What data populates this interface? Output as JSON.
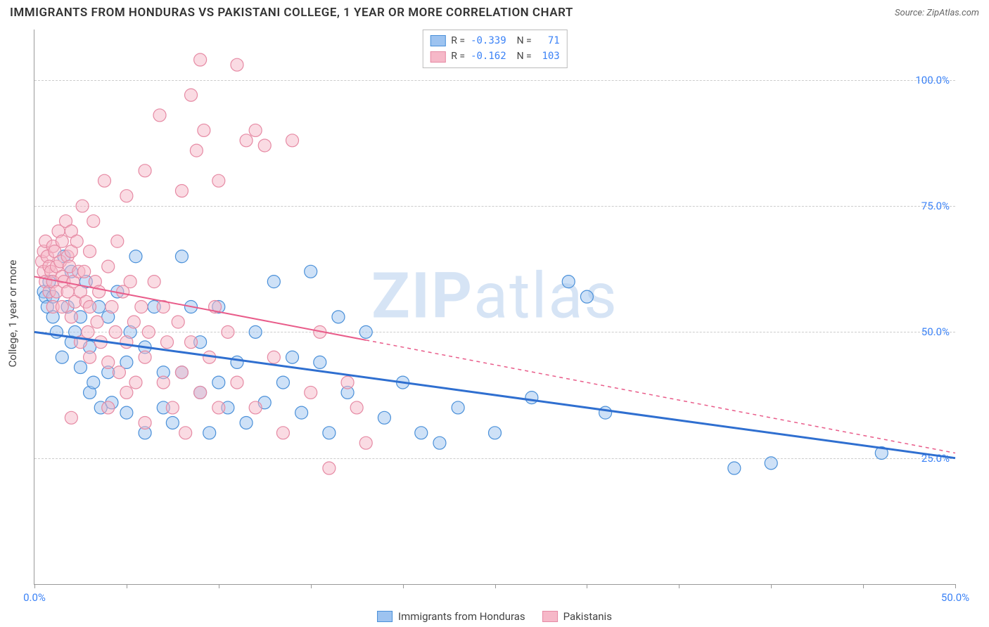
{
  "header": {
    "title": "IMMIGRANTS FROM HONDURAS VS PAKISTANI COLLEGE, 1 YEAR OR MORE CORRELATION CHART",
    "source": "Source: ZipAtlas.com"
  },
  "chart": {
    "type": "scatter",
    "ylabel": "College, 1 year or more",
    "watermark": "ZIPatlas",
    "background_color": "#ffffff",
    "grid_color": "#cccccc",
    "axis_color": "#999999",
    "label_color": "#3b82f6",
    "xlim": [
      0,
      50
    ],
    "ylim": [
      0,
      110
    ],
    "yticks": [
      25,
      50,
      75,
      100
    ],
    "ytick_labels": [
      "25.0%",
      "50.0%",
      "75.0%",
      "100.0%"
    ],
    "xticks": [
      0,
      5,
      10,
      15,
      20,
      25,
      30,
      35,
      40,
      45,
      50
    ],
    "xmin_label": "0.0%",
    "xmax_label": "50.0%",
    "marker_radius": 9,
    "marker_opacity": 0.5,
    "series": [
      {
        "name": "Immigrants from Honduras",
        "fill": "#9dc3f0",
        "stroke": "#4a90d9",
        "line_color": "#2f6fd0",
        "line_width": 3,
        "R": "-0.339",
        "N": "71",
        "trend": {
          "x1": 0,
          "y1": 50,
          "x2": 50,
          "y2": 25,
          "dash_from_x": null
        },
        "points": [
          [
            0.5,
            58
          ],
          [
            0.6,
            57
          ],
          [
            0.7,
            55
          ],
          [
            0.8,
            60
          ],
          [
            1.0,
            57
          ],
          [
            1.0,
            53
          ],
          [
            1.2,
            50
          ],
          [
            1.5,
            45
          ],
          [
            1.6,
            65
          ],
          [
            1.8,
            55
          ],
          [
            2.0,
            48
          ],
          [
            2.0,
            62
          ],
          [
            2.2,
            50
          ],
          [
            2.5,
            43
          ],
          [
            2.5,
            53
          ],
          [
            2.8,
            60
          ],
          [
            3.0,
            38
          ],
          [
            3.0,
            47
          ],
          [
            3.2,
            40
          ],
          [
            3.5,
            55
          ],
          [
            3.6,
            35
          ],
          [
            4.0,
            42
          ],
          [
            4.0,
            53
          ],
          [
            4.2,
            36
          ],
          [
            4.5,
            58
          ],
          [
            5.0,
            44
          ],
          [
            5.0,
            34
          ],
          [
            5.2,
            50
          ],
          [
            5.5,
            65
          ],
          [
            6.0,
            47
          ],
          [
            6.0,
            30
          ],
          [
            6.5,
            55
          ],
          [
            7.0,
            42
          ],
          [
            7.0,
            35
          ],
          [
            7.5,
            32
          ],
          [
            8.0,
            65
          ],
          [
            8.0,
            42
          ],
          [
            8.5,
            55
          ],
          [
            9.0,
            38
          ],
          [
            9.0,
            48
          ],
          [
            9.5,
            30
          ],
          [
            10.0,
            40
          ],
          [
            10.0,
            55
          ],
          [
            10.5,
            35
          ],
          [
            11.0,
            44
          ],
          [
            11.5,
            32
          ],
          [
            12.0,
            50
          ],
          [
            12.5,
            36
          ],
          [
            13.0,
            60
          ],
          [
            13.5,
            40
          ],
          [
            14.0,
            45
          ],
          [
            14.5,
            34
          ],
          [
            15.0,
            62
          ],
          [
            15.5,
            44
          ],
          [
            16.0,
            30
          ],
          [
            16.5,
            53
          ],
          [
            17.0,
            38
          ],
          [
            18.0,
            50
          ],
          [
            19.0,
            33
          ],
          [
            20.0,
            40
          ],
          [
            21.0,
            30
          ],
          [
            22.0,
            28
          ],
          [
            23.0,
            35
          ],
          [
            25.0,
            30
          ],
          [
            27.0,
            37
          ],
          [
            29.0,
            60
          ],
          [
            30.0,
            57
          ],
          [
            31.0,
            34
          ],
          [
            38.0,
            23
          ],
          [
            40.0,
            24
          ],
          [
            46.0,
            26
          ]
        ]
      },
      {
        "name": "Pakistanis",
        "fill": "#f6b8c8",
        "stroke": "#e68aa4",
        "line_color": "#e95c8a",
        "line_width": 2,
        "R": "-0.162",
        "N": "103",
        "trend": {
          "x1": 0,
          "y1": 61,
          "x2": 50,
          "y2": 26,
          "dash_from_x": 18
        },
        "points": [
          [
            0.4,
            64
          ],
          [
            0.5,
            66
          ],
          [
            0.5,
            62
          ],
          [
            0.6,
            68
          ],
          [
            0.6,
            60
          ],
          [
            0.7,
            65
          ],
          [
            0.8,
            63
          ],
          [
            0.8,
            58
          ],
          [
            0.9,
            62
          ],
          [
            1.0,
            67
          ],
          [
            1.0,
            60
          ],
          [
            1.0,
            55
          ],
          [
            1.1,
            66
          ],
          [
            1.2,
            63
          ],
          [
            1.2,
            58
          ],
          [
            1.3,
            70
          ],
          [
            1.4,
            64
          ],
          [
            1.5,
            61
          ],
          [
            1.5,
            68
          ],
          [
            1.5,
            55
          ],
          [
            1.6,
            60
          ],
          [
            1.7,
            72
          ],
          [
            1.8,
            65
          ],
          [
            1.8,
            58
          ],
          [
            1.9,
            63
          ],
          [
            2.0,
            70
          ],
          [
            2.0,
            66
          ],
          [
            2.0,
            53
          ],
          [
            2.1,
            60
          ],
          [
            2.2,
            56
          ],
          [
            2.3,
            68
          ],
          [
            2.4,
            62
          ],
          [
            2.5,
            58
          ],
          [
            2.5,
            48
          ],
          [
            2.6,
            75
          ],
          [
            2.7,
            62
          ],
          [
            2.8,
            56
          ],
          [
            2.9,
            50
          ],
          [
            3.0,
            66
          ],
          [
            3.0,
            55
          ],
          [
            3.0,
            45
          ],
          [
            3.2,
            72
          ],
          [
            3.3,
            60
          ],
          [
            3.4,
            52
          ],
          [
            3.5,
            58
          ],
          [
            3.6,
            48
          ],
          [
            3.8,
            80
          ],
          [
            4.0,
            44
          ],
          [
            4.0,
            63
          ],
          [
            4.0,
            35
          ],
          [
            4.2,
            55
          ],
          [
            4.4,
            50
          ],
          [
            4.5,
            68
          ],
          [
            4.6,
            42
          ],
          [
            4.8,
            58
          ],
          [
            5.0,
            77
          ],
          [
            5.0,
            48
          ],
          [
            5.0,
            38
          ],
          [
            5.2,
            60
          ],
          [
            5.4,
            52
          ],
          [
            5.5,
            40
          ],
          [
            5.8,
            55
          ],
          [
            6.0,
            82
          ],
          [
            6.0,
            45
          ],
          [
            6.0,
            32
          ],
          [
            6.2,
            50
          ],
          [
            6.5,
            60
          ],
          [
            6.8,
            93
          ],
          [
            7.0,
            40
          ],
          [
            7.0,
            55
          ],
          [
            7.2,
            48
          ],
          [
            7.5,
            35
          ],
          [
            7.8,
            52
          ],
          [
            8.0,
            78
          ],
          [
            8.0,
            42
          ],
          [
            8.2,
            30
          ],
          [
            8.5,
            97
          ],
          [
            8.5,
            48
          ],
          [
            8.8,
            86
          ],
          [
            9.0,
            38
          ],
          [
            9.0,
            104
          ],
          [
            9.2,
            90
          ],
          [
            9.5,
            45
          ],
          [
            9.8,
            55
          ],
          [
            10.0,
            80
          ],
          [
            10.0,
            35
          ],
          [
            10.5,
            50
          ],
          [
            11.0,
            40
          ],
          [
            11.0,
            103
          ],
          [
            11.5,
            88
          ],
          [
            12.0,
            90
          ],
          [
            12.0,
            35
          ],
          [
            12.5,
            87
          ],
          [
            13.0,
            45
          ],
          [
            13.5,
            30
          ],
          [
            14.0,
            88
          ],
          [
            15.0,
            38
          ],
          [
            15.5,
            50
          ],
          [
            16.0,
            23
          ],
          [
            17.0,
            40
          ],
          [
            17.5,
            35
          ],
          [
            18.0,
            28
          ],
          [
            2.0,
            33
          ]
        ]
      }
    ]
  },
  "legend_bottom": {
    "items": [
      {
        "label": "Immigrants from Honduras",
        "fill": "#9dc3f0",
        "stroke": "#4a90d9"
      },
      {
        "label": "Pakistanis",
        "fill": "#f6b8c8",
        "stroke": "#e68aa4"
      }
    ]
  }
}
